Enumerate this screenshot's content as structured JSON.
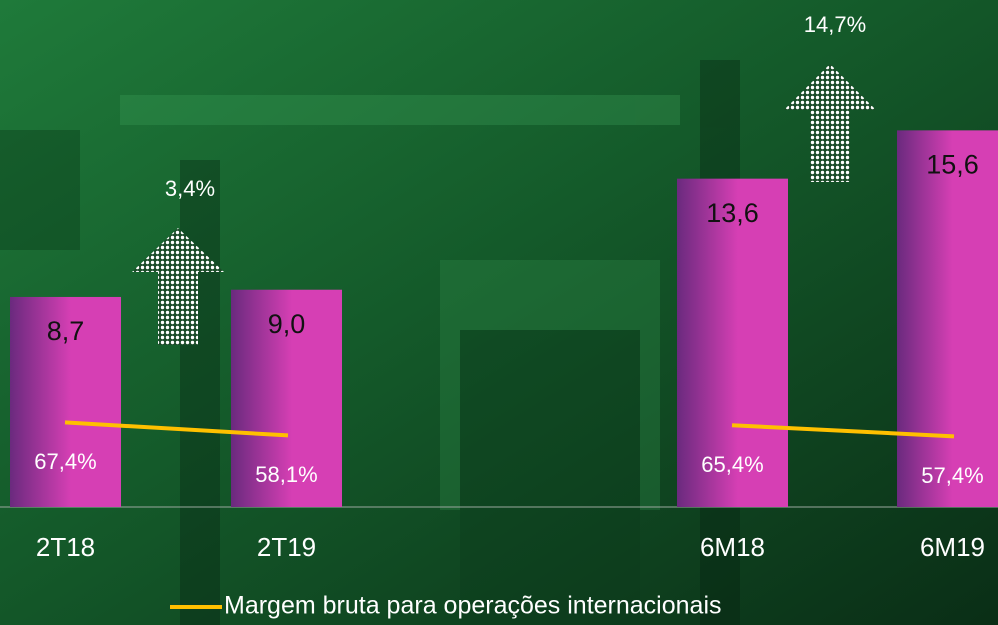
{
  "chart_data": {
    "type": "bar",
    "categories": [
      "2T18",
      "2T19",
      "6M18",
      "6M19"
    ],
    "series": [
      {
        "color": "#d63fb4",
        "values": [
          8.7,
          9.0,
          13.6,
          15.6
        ],
        "value_labels": [
          "8,7",
          "9,0",
          "13,6",
          "15,6"
        ]
      },
      {
        "name": "Margem bruta para operações internacionais",
        "color": "#ffc000",
        "axis": "y2",
        "values": [
          67.4,
          58.1,
          65.4,
          57.4
        ],
        "value_labels": [
          "67,4%",
          "58,1%",
          "65,4%",
          "57,4%"
        ]
      }
    ],
    "annotations": [
      "3,4%",
      "14,7%"
    ],
    "ylim": [
      0,
      21
    ],
    "y2lim": [
      7,
      369
    ]
  }
}
